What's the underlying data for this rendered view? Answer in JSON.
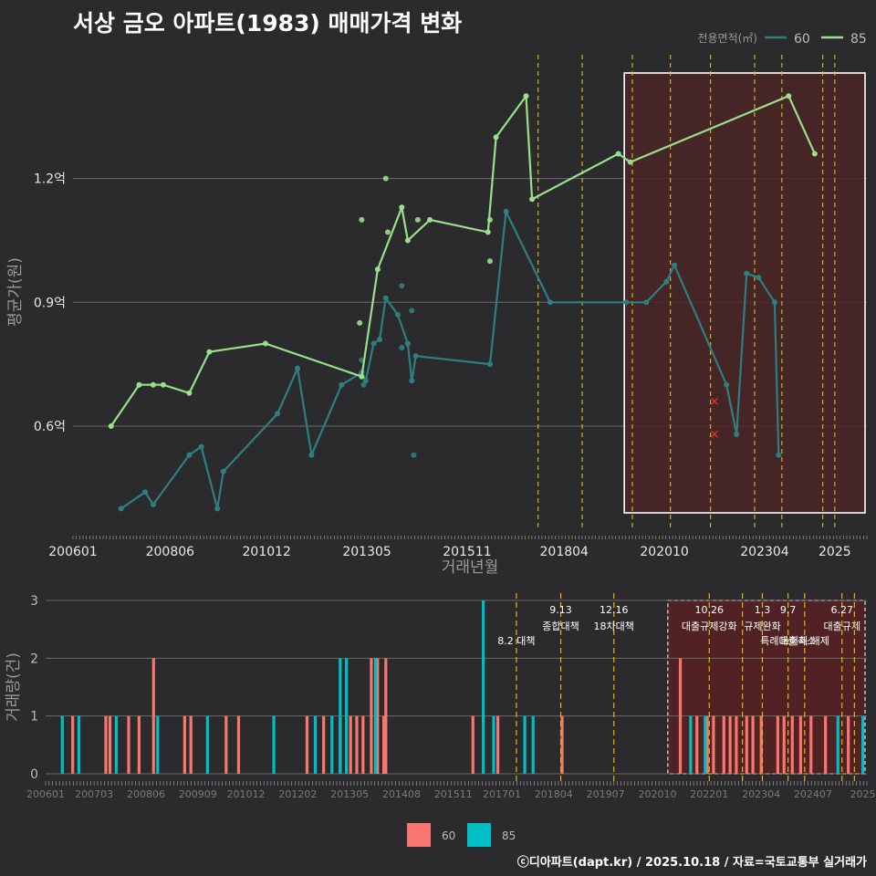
{
  "title": "서상 금오 아파트(1983) 매매가격 변화",
  "footer": "ⓒ디아파트(dapt.kr) / 2025.10.18 / 자료=국토교통부 실거래가",
  "colors": {
    "background": "#2b2b2d",
    "grid": "#6a6a6a",
    "series60_line": "#2e7f7f",
    "series85_line": "#98e08a",
    "bar60": "#f8766d",
    "bar85": "#00bfc4",
    "policy_line": "#d6c21a",
    "highlight_fill": "#4a2424",
    "text_muted": "#9a9a9a"
  },
  "chart_data": [
    {
      "type": "line",
      "title": "서상 금오 아파트(1983) 매매가격 변화",
      "xlabel": "거래년월",
      "ylabel": "평균가(원)",
      "x_range": [
        2006.0,
        2025.8
      ],
      "ylim": [
        0.35,
        1.5
      ],
      "y_ticks": [
        0.6,
        0.9,
        1.2
      ],
      "y_tick_labels": [
        "0.6억",
        "0.9억",
        "1.2억"
      ],
      "x_ticks": [
        2006.0,
        2008.42,
        2010.83,
        2013.33,
        2015.83,
        2018.25,
        2020.75,
        2023.25,
        2025.0
      ],
      "x_tick_labels": [
        "200601",
        "200806",
        "201012",
        "201305",
        "201511",
        "201804",
        "202010",
        "202304",
        "2025"
      ],
      "legend_title": "전용면적(㎡)",
      "legend_position": "top-right",
      "highlight_range": [
        2019.75,
        2025.8
      ],
      "policy_dates": [
        2017.6,
        2018.7,
        2019.95,
        2020.9,
        2021.9,
        2023.0,
        2023.68,
        2024.7,
        2025.0
      ],
      "series": [
        {
          "name": "60",
          "line": [
            [
              2007.2,
              0.4
            ],
            [
              2007.8,
              0.44
            ],
            [
              2008.0,
              0.41
            ],
            [
              2008.9,
              0.53
            ],
            [
              2009.2,
              0.55
            ],
            [
              2009.6,
              0.4
            ],
            [
              2009.75,
              0.49
            ],
            [
              2011.1,
              0.63
            ],
            [
              2011.6,
              0.74
            ],
            [
              2011.95,
              0.53
            ],
            [
              2012.7,
              0.7
            ],
            [
              2013.2,
              0.73
            ],
            [
              2013.3,
              0.71
            ],
            [
              2013.5,
              0.8
            ],
            [
              2013.65,
              0.81
            ],
            [
              2013.8,
              0.91
            ],
            [
              2014.1,
              0.87
            ],
            [
              2014.35,
              0.8
            ],
            [
              2014.45,
              0.71
            ],
            [
              2014.55,
              0.77
            ],
            [
              2016.4,
              0.75
            ],
            [
              2016.8,
              1.12
            ],
            [
              2017.9,
              0.9
            ],
            [
              2019.8,
              0.9
            ],
            [
              2020.3,
              0.9
            ],
            [
              2020.8,
              0.95
            ],
            [
              2021.0,
              0.99
            ],
            [
              2022.3,
              0.7
            ],
            [
              2022.55,
              0.58
            ],
            [
              2022.8,
              0.97
            ],
            [
              2023.1,
              0.96
            ],
            [
              2023.5,
              0.9
            ],
            [
              2023.6,
              0.53
            ]
          ],
          "points": [
            [
              2013.2,
              0.76
            ],
            [
              2013.25,
              0.7
            ],
            [
              2013.3,
              0.71
            ],
            [
              2013.8,
              0.91
            ],
            [
              2014.2,
              0.94
            ],
            [
              2014.2,
              0.79
            ],
            [
              2014.5,
              0.53
            ],
            [
              2014.45,
              0.88
            ],
            [
              2014.35,
              0.8
            ]
          ],
          "cancelled": [
            [
              2022.0,
              0.66
            ],
            [
              2022.0,
              0.58
            ]
          ]
        },
        {
          "name": "85",
          "line": [
            [
              2006.95,
              0.6
            ],
            [
              2007.65,
              0.7
            ],
            [
              2008.0,
              0.7
            ],
            [
              2008.25,
              0.7
            ],
            [
              2008.9,
              0.68
            ],
            [
              2009.4,
              0.78
            ],
            [
              2010.8,
              0.8
            ],
            [
              2013.2,
              0.72
            ],
            [
              2013.6,
              0.98
            ],
            [
              2014.2,
              1.13
            ],
            [
              2014.35,
              1.05
            ],
            [
              2014.9,
              1.1
            ],
            [
              2016.35,
              1.07
            ],
            [
              2016.55,
              1.3
            ],
            [
              2017.3,
              1.4
            ],
            [
              2017.45,
              1.15
            ],
            [
              2019.6,
              1.26
            ],
            [
              2019.9,
              1.24
            ],
            [
              2023.85,
              1.4
            ],
            [
              2024.5,
              1.26
            ]
          ],
          "points": [
            [
              2013.2,
              1.1
            ],
            [
              2013.15,
              0.85
            ],
            [
              2013.8,
              1.2
            ],
            [
              2013.85,
              1.07
            ],
            [
              2016.4,
              1.1
            ],
            [
              2016.4,
              1.0
            ],
            [
              2014.6,
              1.1
            ]
          ]
        }
      ]
    },
    {
      "type": "bar",
      "ylabel": "거래량(건)",
      "ylim": [
        0,
        3
      ],
      "y_ticks": [
        0,
        1,
        2,
        3
      ],
      "x_range": [
        2006.0,
        2025.8
      ],
      "x_ticks": [
        2006.0,
        2007.17,
        2008.42,
        2009.67,
        2010.83,
        2012.08,
        2013.33,
        2014.58,
        2015.83,
        2017.0,
        2018.25,
        2019.5,
        2020.75,
        2022.0,
        2023.25,
        2024.5,
        2025.7
      ],
      "x_tick_labels": [
        "200601",
        "200703",
        "200806",
        "200909",
        "201012",
        "201202",
        "201305",
        "201408",
        "201511",
        "201701",
        "201804",
        "201907",
        "202010",
        "202201",
        "202304",
        "202407",
        "2025"
      ],
      "highlight_range": [
        2021.0,
        2025.8
      ],
      "policy_lines": [
        {
          "x": 2017.35,
          "date": "",
          "name": "8.2 대책",
          "level": 2
        },
        {
          "x": 2018.42,
          "date": "9.13",
          "name": "종합대책",
          "level": 1
        },
        {
          "x": 2019.7,
          "date": "12.16",
          "name": "18차대책",
          "level": 1
        },
        {
          "x": 2022.0,
          "date": "10.26",
          "name": "대출규제강화",
          "level": 1
        },
        {
          "x": 2022.8,
          "date": "",
          "name": "",
          "level": 0
        },
        {
          "x": 2023.28,
          "date": "1.3",
          "name": "규제완화",
          "level": 1
        },
        {
          "x": 2023.9,
          "date": "9.7",
          "name": "특례대출축소",
          "level": 2
        },
        {
          "x": 2024.3,
          "date": "",
          "name": "토허제 해제",
          "level": 2
        },
        {
          "x": 2025.2,
          "date": "6.27",
          "name": "대출규제",
          "level": 1
        },
        {
          "x": 2025.5,
          "date": "",
          "name": "",
          "level": 0
        }
      ],
      "legend_position": "bottom",
      "series": [
        {
          "name": "60",
          "bars": [
            [
              2006.65,
              1
            ],
            [
              2007.45,
              1
            ],
            [
              2007.55,
              1
            ],
            [
              2008.0,
              1
            ],
            [
              2008.25,
              1
            ],
            [
              2008.6,
              2
            ],
            [
              2009.35,
              1
            ],
            [
              2009.5,
              1
            ],
            [
              2010.35,
              1
            ],
            [
              2010.65,
              1
            ],
            [
              2012.3,
              1
            ],
            [
              2012.7,
              1
            ],
            [
              2013.1,
              1
            ],
            [
              2013.35,
              1
            ],
            [
              2013.5,
              1
            ],
            [
              2013.65,
              1
            ],
            [
              2013.85,
              2
            ],
            [
              2014.0,
              2
            ],
            [
              2014.15,
              1
            ],
            [
              2014.2,
              2
            ],
            [
              2016.3,
              1
            ],
            [
              2016.9,
              1
            ],
            [
              2018.45,
              1
            ],
            [
              2021.3,
              2
            ],
            [
              2021.7,
              1
            ],
            [
              2021.95,
              1
            ],
            [
              2022.1,
              1
            ],
            [
              2022.35,
              1
            ],
            [
              2022.5,
              1
            ],
            [
              2022.65,
              1
            ],
            [
              2022.9,
              1
            ],
            [
              2023.05,
              1
            ],
            [
              2023.25,
              1
            ],
            [
              2023.65,
              1
            ],
            [
              2023.8,
              1
            ],
            [
              2024.0,
              1
            ],
            [
              2024.2,
              1
            ],
            [
              2024.45,
              1
            ],
            [
              2024.8,
              1
            ],
            [
              2025.35,
              1
            ]
          ]
        },
        {
          "name": "85",
          "bars": [
            [
              2006.4,
              1
            ],
            [
              2006.8,
              1
            ],
            [
              2007.7,
              1
            ],
            [
              2008.7,
              1
            ],
            [
              2009.9,
              1
            ],
            [
              2011.5,
              1
            ],
            [
              2012.5,
              1
            ],
            [
              2012.9,
              1
            ],
            [
              2013.1,
              2
            ],
            [
              2013.25,
              2
            ],
            [
              2013.95,
              2
            ],
            [
              2016.55,
              3
            ],
            [
              2016.8,
              1
            ],
            [
              2017.55,
              1
            ],
            [
              2017.75,
              1
            ],
            [
              2021.55,
              1
            ],
            [
              2021.9,
              1
            ],
            [
              2025.1,
              1
            ],
            [
              2025.7,
              1
            ]
          ]
        }
      ]
    }
  ]
}
